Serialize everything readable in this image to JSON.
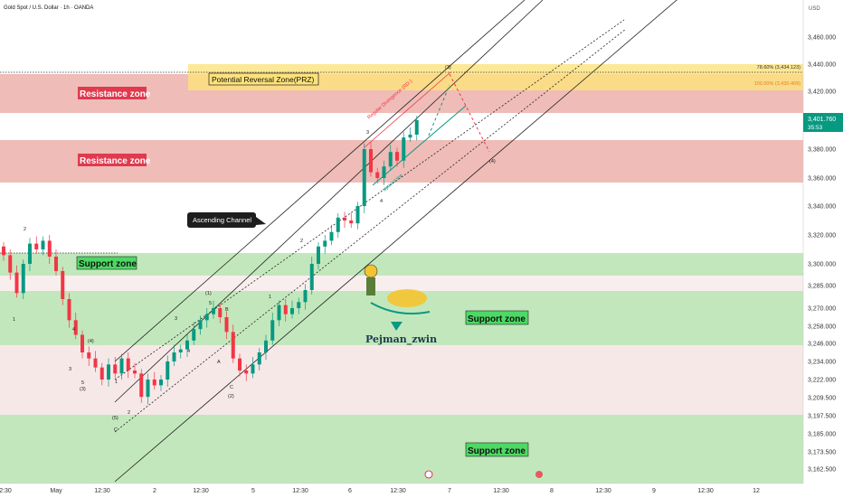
{
  "header": {
    "symbol_title": "Gold Spot / U.S. Dollar · 1h · OANDA"
  },
  "price_axis": {
    "currency": "USD",
    "last_price": "3,401.760",
    "countdown": "35:53",
    "ticks": [
      "3,460.000",
      "3,440.000",
      "3,420.000",
      "3,400.000",
      "3,380.000",
      "3,360.000",
      "3,340.000",
      "3,320.000",
      "3,300.000",
      "3,285.000",
      "3,270.000",
      "3,258.000",
      "3,246.000",
      "3,234.000",
      "3,222.000",
      "3,209.500",
      "3,197.500",
      "3,185.000",
      "3,173.500",
      "3,162.500"
    ]
  },
  "time_axis": {
    "ticks": [
      "2:30",
      "May",
      "12:30",
      "2",
      "12:30",
      "5",
      "12:30",
      "6",
      "12:30",
      "7",
      "12:30",
      "8",
      "12:30",
      "9",
      "12:30",
      "12"
    ]
  },
  "labels": {
    "resistance_1": "Resistance zone",
    "resistance_2": "Resistance zone",
    "support_1": "Support zone",
    "support_2": "Support zone",
    "support_3": "Support zone",
    "prz": "Potential Reversal Zone(PRZ)",
    "fib_786": "78.60% (3,434.123)",
    "fib_100": "100.00% (3,430.409)",
    "ascending_channel": "Ascending Channel",
    "regular_divergence": "Regular Divergence (RD-)",
    "uptrend_line": "Uptrend line",
    "watermark": "Pejman_zwin",
    "wave_labels": [
      "2",
      "1",
      "4",
      "3",
      "5",
      "(4)",
      "(3)",
      "1",
      "(5)",
      "2",
      "C",
      "3",
      "4",
      "5",
      "(1)",
      "A",
      "B",
      "C",
      "(2)",
      "1",
      "2",
      "3",
      "4",
      "(3)",
      "(4)"
    ]
  },
  "colors": {
    "up": "#089981",
    "down": "#f23645",
    "resistance_fill": "#eaa6a0",
    "support_fill": "#b9e3b0",
    "prz_fill": "#fde27a",
    "label_red": "#e03a4e",
    "label_green": "#4cd964"
  },
  "chart_data": {
    "type": "candlestick",
    "title": "Gold Spot / U.S. Dollar · 1h · OANDA",
    "ylim": [
      3156,
      3468
    ],
    "zones": [
      {
        "name": "Resistance zone",
        "low": 3404,
        "high": 3430
      },
      {
        "name": "Resistance zone",
        "low": 3359,
        "high": 3389
      },
      {
        "name": "Potential Reversal Zone(PRZ)",
        "low": 3421,
        "high": 3441
      },
      {
        "name": "Support zone",
        "low": 3290,
        "high": 3308
      },
      {
        "name": "Support zone",
        "low": 3244,
        "high": 3282
      },
      {
        "name": "Support zone",
        "low": 3164,
        "high": 3200
      }
    ],
    "fib_levels": [
      {
        "label": "78.60%",
        "value": 3434.123
      },
      {
        "label": "100.00%",
        "value": 3430.409
      }
    ],
    "last_price": 3401.76,
    "candles_close": [
      3306,
      3294,
      3280,
      3300,
      3314,
      3310,
      3316,
      3305,
      3295,
      3276,
      3262,
      3252,
      3240,
      3236,
      3230,
      3222,
      3232,
      3226,
      3236,
      3228,
      3226,
      3210,
      3222,
      3218,
      3222,
      3234,
      3240,
      3242,
      3248,
      3256,
      3262,
      3266,
      3270,
      3264,
      3254,
      3236,
      3228,
      3226,
      3232,
      3240,
      3248,
      3262,
      3272,
      3266,
      3270,
      3274,
      3282,
      3300,
      3312,
      3316,
      3322,
      3332,
      3330,
      3328,
      3340,
      3380,
      3364,
      3360,
      3368,
      3378,
      3372,
      3388,
      3390,
      3400
    ]
  }
}
